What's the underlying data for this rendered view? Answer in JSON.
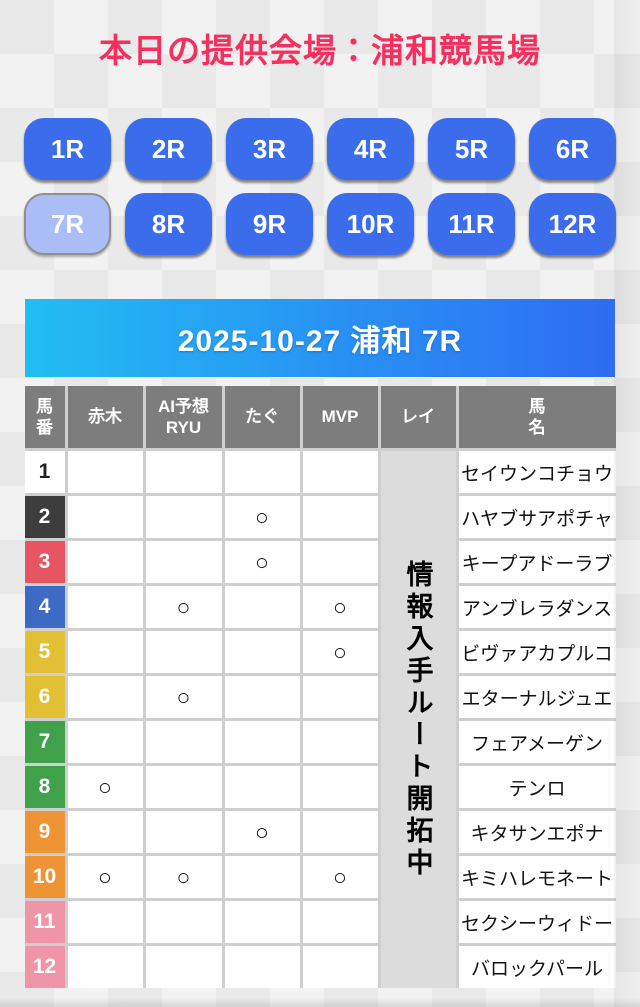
{
  "page": {
    "title": "本日の提供会場：浦和競馬場",
    "race_header": "2025-10-27 浦和 7R"
  },
  "colors": {
    "title_pink": "#f5305f",
    "button_blue": "#3b6ceb",
    "button_selected": "#aabdf6",
    "header_gradient_left": "#22bdf3",
    "header_gradient_right": "#2e6cf3",
    "table_header_gray": "#7d7d7d",
    "rei_cell_gray": "#dcdcdc"
  },
  "race_buttons": {
    "items": [
      "1R",
      "2R",
      "3R",
      "4R",
      "5R",
      "6R",
      "7R",
      "8R",
      "9R",
      "10R",
      "11R",
      "12R"
    ],
    "selected": "7R"
  },
  "table": {
    "headers": [
      "馬\n番",
      "赤木",
      "AI予想\nRYU",
      "たぐ",
      "MVP",
      "レイ",
      "馬\n名"
    ],
    "mark_symbol": "○",
    "rei_notice": "情報入手ルート開拓中",
    "rows": [
      {
        "number": "1",
        "frame_color": "#ffffff",
        "number_text_color": "#222222",
        "marks": [
          "",
          "",
          "",
          ""
        ],
        "name": "セイウンコチョウ"
      },
      {
        "number": "2",
        "frame_color": "#3d3d3d",
        "number_text_color": "#ffffff",
        "marks": [
          "",
          "",
          "○",
          ""
        ],
        "name": "ハヤブサアポチャ"
      },
      {
        "number": "3",
        "frame_color": "#e85562",
        "number_text_color": "#ffffff",
        "marks": [
          "",
          "",
          "○",
          ""
        ],
        "name": "キープアドーラブ"
      },
      {
        "number": "4",
        "frame_color": "#3d6ac5",
        "number_text_color": "#ffffff",
        "marks": [
          "",
          "○",
          "",
          "○"
        ],
        "name": "アンブレラダンス"
      },
      {
        "number": "5",
        "frame_color": "#e3bf33",
        "number_text_color": "#ffffff",
        "marks": [
          "",
          "",
          "",
          "○"
        ],
        "name": "ビヴァアカプルコ"
      },
      {
        "number": "6",
        "frame_color": "#e3bf33",
        "number_text_color": "#ffffff",
        "marks": [
          "",
          "○",
          "",
          ""
        ],
        "name": "エターナルジュエ"
      },
      {
        "number": "7",
        "frame_color": "#3fa24b",
        "number_text_color": "#ffffff",
        "marks": [
          "",
          "",
          "",
          ""
        ],
        "name": "フェアメーゲン"
      },
      {
        "number": "8",
        "frame_color": "#3fa24b",
        "number_text_color": "#ffffff",
        "marks": [
          "○",
          "",
          "",
          ""
        ],
        "name": "テンロ"
      },
      {
        "number": "9",
        "frame_color": "#ee9434",
        "number_text_color": "#ffffff",
        "marks": [
          "",
          "",
          "○",
          ""
        ],
        "name": "キタサンエポナ"
      },
      {
        "number": "10",
        "frame_color": "#ee9434",
        "number_text_color": "#ffffff",
        "marks": [
          "○",
          "○",
          "",
          "○"
        ],
        "name": "キミハレモネート"
      },
      {
        "number": "11",
        "frame_color": "#f095a7",
        "number_text_color": "#ffffff",
        "marks": [
          "",
          "",
          "",
          ""
        ],
        "name": "セクシーウィドー"
      },
      {
        "number": "12",
        "frame_color": "#f095a7",
        "number_text_color": "#ffffff",
        "marks": [
          "",
          "",
          "",
          ""
        ],
        "name": "バロックパール"
      }
    ]
  }
}
